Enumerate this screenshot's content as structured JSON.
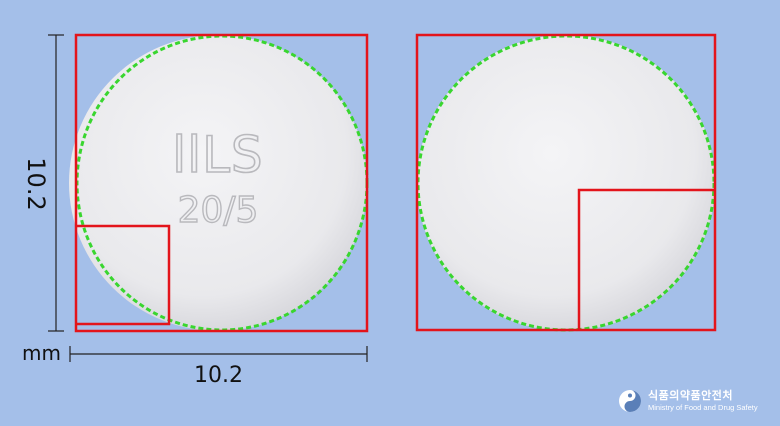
{
  "imprint": {
    "line1": "llLS",
    "line2": "20/5"
  },
  "dimensions": {
    "height": "10.2",
    "width": "10.2",
    "unit": "mm"
  },
  "watermark": {
    "korean": "식품의약품안전처",
    "english": "Ministry of Food and Drug Safety"
  },
  "colors": {
    "background": "#a4bfe9",
    "tablet": "#ececee",
    "bounding_box": "#e3141b",
    "contour": "#39d62f",
    "imprint": "#b9b9bd"
  }
}
